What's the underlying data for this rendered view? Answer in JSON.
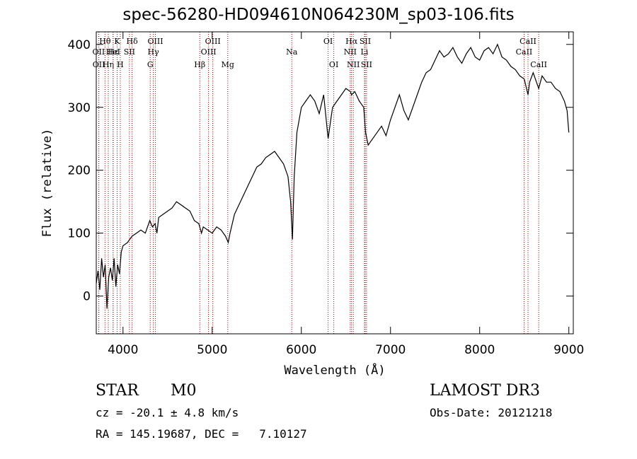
{
  "chart_data": {
    "type": "line",
    "title": "spec-56280-HD094610N064230M_sp03-106.fits",
    "xlabel": "Wavelength (Å)",
    "ylabel": "Flux (relative)",
    "xlim": [
      3700,
      9050
    ],
    "ylim": [
      -60,
      420
    ],
    "xticks": [
      4000,
      5000,
      6000,
      7000,
      8000,
      9000
    ],
    "yticks": [
      0,
      100,
      200,
      300,
      400
    ],
    "line_color": "#000000",
    "marker_color": "#aa0000",
    "series": [
      {
        "x": [
          3700,
          3720,
          3740,
          3760,
          3780,
          3800,
          3820,
          3840,
          3860,
          3880,
          3900,
          3920,
          3940,
          3960,
          3980,
          4000,
          4050,
          4100,
          4150,
          4200,
          4250,
          4300,
          4330,
          4360,
          4380,
          4400,
          4450,
          4500,
          4550,
          4600,
          4650,
          4700,
          4750,
          4800,
          4850,
          4880,
          4900,
          4950,
          5000,
          5050,
          5100,
          5150,
          5180,
          5200,
          5250,
          5300,
          5350,
          5400,
          5450,
          5500,
          5550,
          5600,
          5650,
          5700,
          5750,
          5800,
          5850,
          5880,
          5900,
          5910,
          5920,
          5950,
          6000,
          6050,
          6100,
          6150,
          6200,
          6250,
          6300,
          6330,
          6350,
          6400,
          6450,
          6500,
          6550,
          6563,
          6600,
          6650,
          6700,
          6720,
          6750,
          6800,
          6850,
          6900,
          6950,
          7000,
          7050,
          7100,
          7150,
          7200,
          7250,
          7300,
          7350,
          7400,
          7450,
          7500,
          7550,
          7600,
          7650,
          7700,
          7750,
          7800,
          7850,
          7900,
          7950,
          8000,
          8050,
          8100,
          8150,
          8200,
          8250,
          8300,
          8350,
          8400,
          8450,
          8500,
          8542,
          8560,
          8600,
          8662,
          8700,
          8750,
          8800,
          8850,
          8900,
          8950,
          8980,
          9000
        ],
        "y": [
          20,
          40,
          10,
          60,
          30,
          50,
          -20,
          30,
          45,
          25,
          60,
          15,
          50,
          35,
          70,
          80,
          85,
          95,
          100,
          105,
          100,
          120,
          110,
          115,
          100,
          125,
          130,
          135,
          140,
          150,
          145,
          140,
          135,
          120,
          115,
          100,
          110,
          105,
          100,
          110,
          105,
          95,
          85,
          100,
          130,
          145,
          160,
          175,
          190,
          205,
          210,
          220,
          225,
          230,
          220,
          210,
          190,
          150,
          90,
          140,
          190,
          260,
          300,
          310,
          320,
          310,
          290,
          320,
          250,
          280,
          300,
          310,
          320,
          330,
          325,
          320,
          325,
          310,
          300,
          260,
          240,
          250,
          260,
          270,
          255,
          280,
          300,
          320,
          295,
          280,
          300,
          320,
          340,
          355,
          360,
          375,
          390,
          380,
          385,
          395,
          380,
          370,
          385,
          395,
          380,
          375,
          390,
          395,
          385,
          400,
          380,
          375,
          365,
          360,
          350,
          345,
          320,
          340,
          355,
          330,
          350,
          340,
          340,
          330,
          325,
          310,
          295,
          260
        ]
      }
    ],
    "annotations": [
      {
        "label": "Hθ",
        "x": 3798,
        "row": 1
      },
      {
        "label": "OII",
        "x": 3727,
        "row": 2
      },
      {
        "label": "OII",
        "x": 3729,
        "row": 3
      },
      {
        "label": "Hε",
        "x": 3889,
        "row": 2
      },
      {
        "label": "Hη",
        "x": 3835,
        "row": 3
      },
      {
        "label": "K",
        "x": 3934,
        "row": 1
      },
      {
        "label": "H",
        "x": 3969,
        "row": 3
      },
      {
        "label": "HeI",
        "x": 3889,
        "row": 2
      },
      {
        "label": "SII",
        "x": 4072,
        "row": 2
      },
      {
        "label": "Hδ",
        "x": 4102,
        "row": 1
      },
      {
        "label": "OIII",
        "x": 4363,
        "row": 1
      },
      {
        "label": "Hγ",
        "x": 4340,
        "row": 2
      },
      {
        "label": "G",
        "x": 4305,
        "row": 3
      },
      {
        "label": "Hβ",
        "x": 4861,
        "row": 3
      },
      {
        "label": "OIII",
        "x": 5007,
        "row": 1
      },
      {
        "label": "OIII",
        "x": 4959,
        "row": 2
      },
      {
        "label": "Mg",
        "x": 5175,
        "row": 3
      },
      {
        "label": "Na",
        "x": 5893,
        "row": 2
      },
      {
        "label": "OI",
        "x": 6300,
        "row": 1
      },
      {
        "label": "OI",
        "x": 6364,
        "row": 3
      },
      {
        "label": "Hα",
        "x": 6563,
        "row": 1
      },
      {
        "label": "NII",
        "x": 6548,
        "row": 2
      },
      {
        "label": "NII",
        "x": 6583,
        "row": 3
      },
      {
        "label": "SII",
        "x": 6716,
        "row": 1
      },
      {
        "label": "Li",
        "x": 6708,
        "row": 2
      },
      {
        "label": "SII",
        "x": 6731,
        "row": 3
      },
      {
        "label": "CaII",
        "x": 8542,
        "row": 1
      },
      {
        "label": "CaII",
        "x": 8498,
        "row": 2
      },
      {
        "label": "CaII",
        "x": 8662,
        "row": 3
      }
    ]
  },
  "info": {
    "class": "STAR",
    "subclass": "M0",
    "survey": "LAMOST DR3",
    "cz": "cz = -20.1 ± 4.8 km/s",
    "obs_date": "Obs-Date: 20121218",
    "coords": "RA = 145.19687, DEC =   7.10127"
  }
}
